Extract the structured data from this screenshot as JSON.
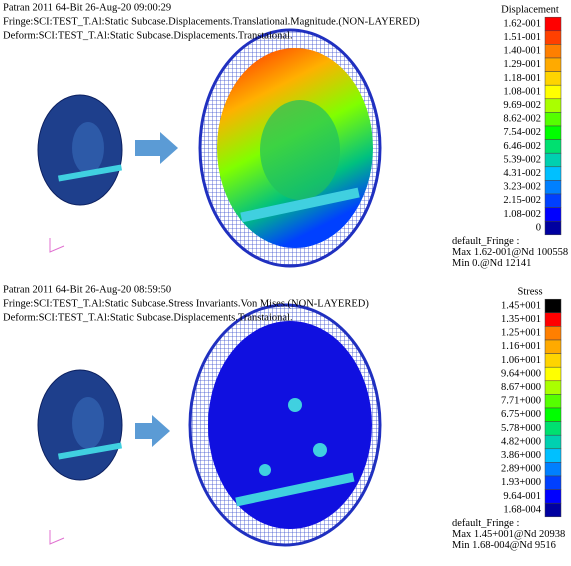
{
  "panels": [
    {
      "header": [
        "Patran 2011 64-Bit 26-Aug-20 09:00:29",
        "Fringe:SCI:TEST_T.Al:Static Subcase.Displacements.Translational.Magnitude.(NON-LAYERED)",
        "Deform:SCI:TEST_T.Al:Static Subcase.Displacements.Transtaional."
      ],
      "legend": {
        "title": "Displacement",
        "labels": [
          "1.62-001",
          "1.51-001",
          "1.40-001",
          "1.29-001",
          "1.18-001",
          "1.08-001",
          "9.69-002",
          "8.62-002",
          "7.54-002",
          "6.46-002",
          "5.39-002",
          "4.31-002",
          "3.23-002",
          "2.15-002",
          "1.08-002",
          "0"
        ],
        "colors": [
          "#ff0000",
          "#ff4000",
          "#ff7f00",
          "#ffaa00",
          "#ffd400",
          "#ffff00",
          "#aaff00",
          "#55ff00",
          "#00ff00",
          "#00e070",
          "#00d0b0",
          "#00c0ff",
          "#0080ff",
          "#0040ff",
          "#0000ff",
          "#0000a0"
        ]
      },
      "footer": [
        "default_Fringe :",
        "Max 1.62-001@Nd 100558",
        "Min 0.@Nd 12141"
      ]
    },
    {
      "header": [
        "Patran 2011 64-Bit 26-Aug-20 08:59:50",
        "Fringe:SCI:TEST_T.Al:Static Subcase.Stress Invariants.Von Mises.(NON-LAYERED)",
        "Deform:SCI:TEST_T.Al:Static Subcase.Displacements.Transtaional."
      ],
      "legend": {
        "title": "Stress",
        "labels": [
          "1.45+001",
          "1.35+001",
          "1.25+001",
          "1.16+001",
          "1.06+001",
          "9.64+000",
          "8.67+000",
          "7.71+000",
          "6.75+000",
          "5.78+000",
          "4.82+000",
          "3.86+000",
          "2.89+000",
          "1.93+000",
          "9.64-001",
          "1.68-004"
        ],
        "colors": [
          "#000000",
          "#ff0000",
          "#ff7f00",
          "#ffaa00",
          "#ffd400",
          "#ffff00",
          "#aaff00",
          "#55ff00",
          "#00ff00",
          "#00e070",
          "#00d0b0",
          "#00c0ff",
          "#0080ff",
          "#0040ff",
          "#0000ff",
          "#0000a0"
        ]
      },
      "footer": [
        "default_Fringe :",
        "Max 1.45+001@Nd 20938",
        "Min 1.68-004@Nd 9516"
      ]
    }
  ]
}
